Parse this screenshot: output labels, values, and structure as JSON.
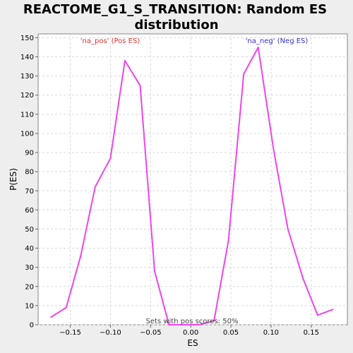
{
  "chart_data": {
    "type": "line",
    "title_line1": "REACTOME_G1_S_TRANSITION: Random ES",
    "title_line2": "distribution",
    "xlabel": "ES",
    "ylabel": "P(ES)",
    "xlim": [
      -0.19,
      0.195
    ],
    "ylim": [
      0,
      152
    ],
    "x_ticks": [
      -0.15,
      -0.1,
      -0.05,
      0.0,
      0.05,
      0.1,
      0.15
    ],
    "x_tick_labels": [
      "−0.15",
      "−0.10",
      "−0.05",
      "0.00",
      "0.05",
      "0.10",
      "0.15"
    ],
    "y_ticks": [
      0,
      10,
      20,
      30,
      40,
      50,
      60,
      70,
      80,
      90,
      100,
      110,
      120,
      130,
      140,
      150
    ],
    "y_tick_labels": [
      "0",
      "10",
      "20",
      "30",
      "40",
      "50",
      "60",
      "70",
      "80",
      "90",
      "100",
      "110",
      "120",
      "130",
      "140",
      "150"
    ],
    "grid": true,
    "line_color": "#ee44ee",
    "points": [
      {
        "x": -0.174,
        "y": 4
      },
      {
        "x": -0.155,
        "y": 9
      },
      {
        "x": -0.137,
        "y": 36
      },
      {
        "x": -0.119,
        "y": 72
      },
      {
        "x": -0.1,
        "y": 87
      },
      {
        "x": -0.082,
        "y": 138
      },
      {
        "x": -0.063,
        "y": 125
      },
      {
        "x": -0.045,
        "y": 28
      },
      {
        "x": -0.027,
        "y": 0
      },
      {
        "x": -0.008,
        "y": 0
      },
      {
        "x": 0.01,
        "y": 0
      },
      {
        "x": 0.029,
        "y": 2
      },
      {
        "x": 0.047,
        "y": 44
      },
      {
        "x": 0.066,
        "y": 131
      },
      {
        "x": 0.084,
        "y": 145
      },
      {
        "x": 0.103,
        "y": 92
      },
      {
        "x": 0.121,
        "y": 50
      },
      {
        "x": 0.14,
        "y": 24
      },
      {
        "x": 0.158,
        "y": 5
      },
      {
        "x": 0.177,
        "y": 8
      }
    ],
    "annotations": {
      "pos_label": "'na_pos' (Pos ES)",
      "pos_color": "#dd3333",
      "neg_label": "'na_neg' (Neg ES)",
      "neg_color": "#3333cc",
      "footer": "Sets with pos scores: 50%"
    }
  }
}
